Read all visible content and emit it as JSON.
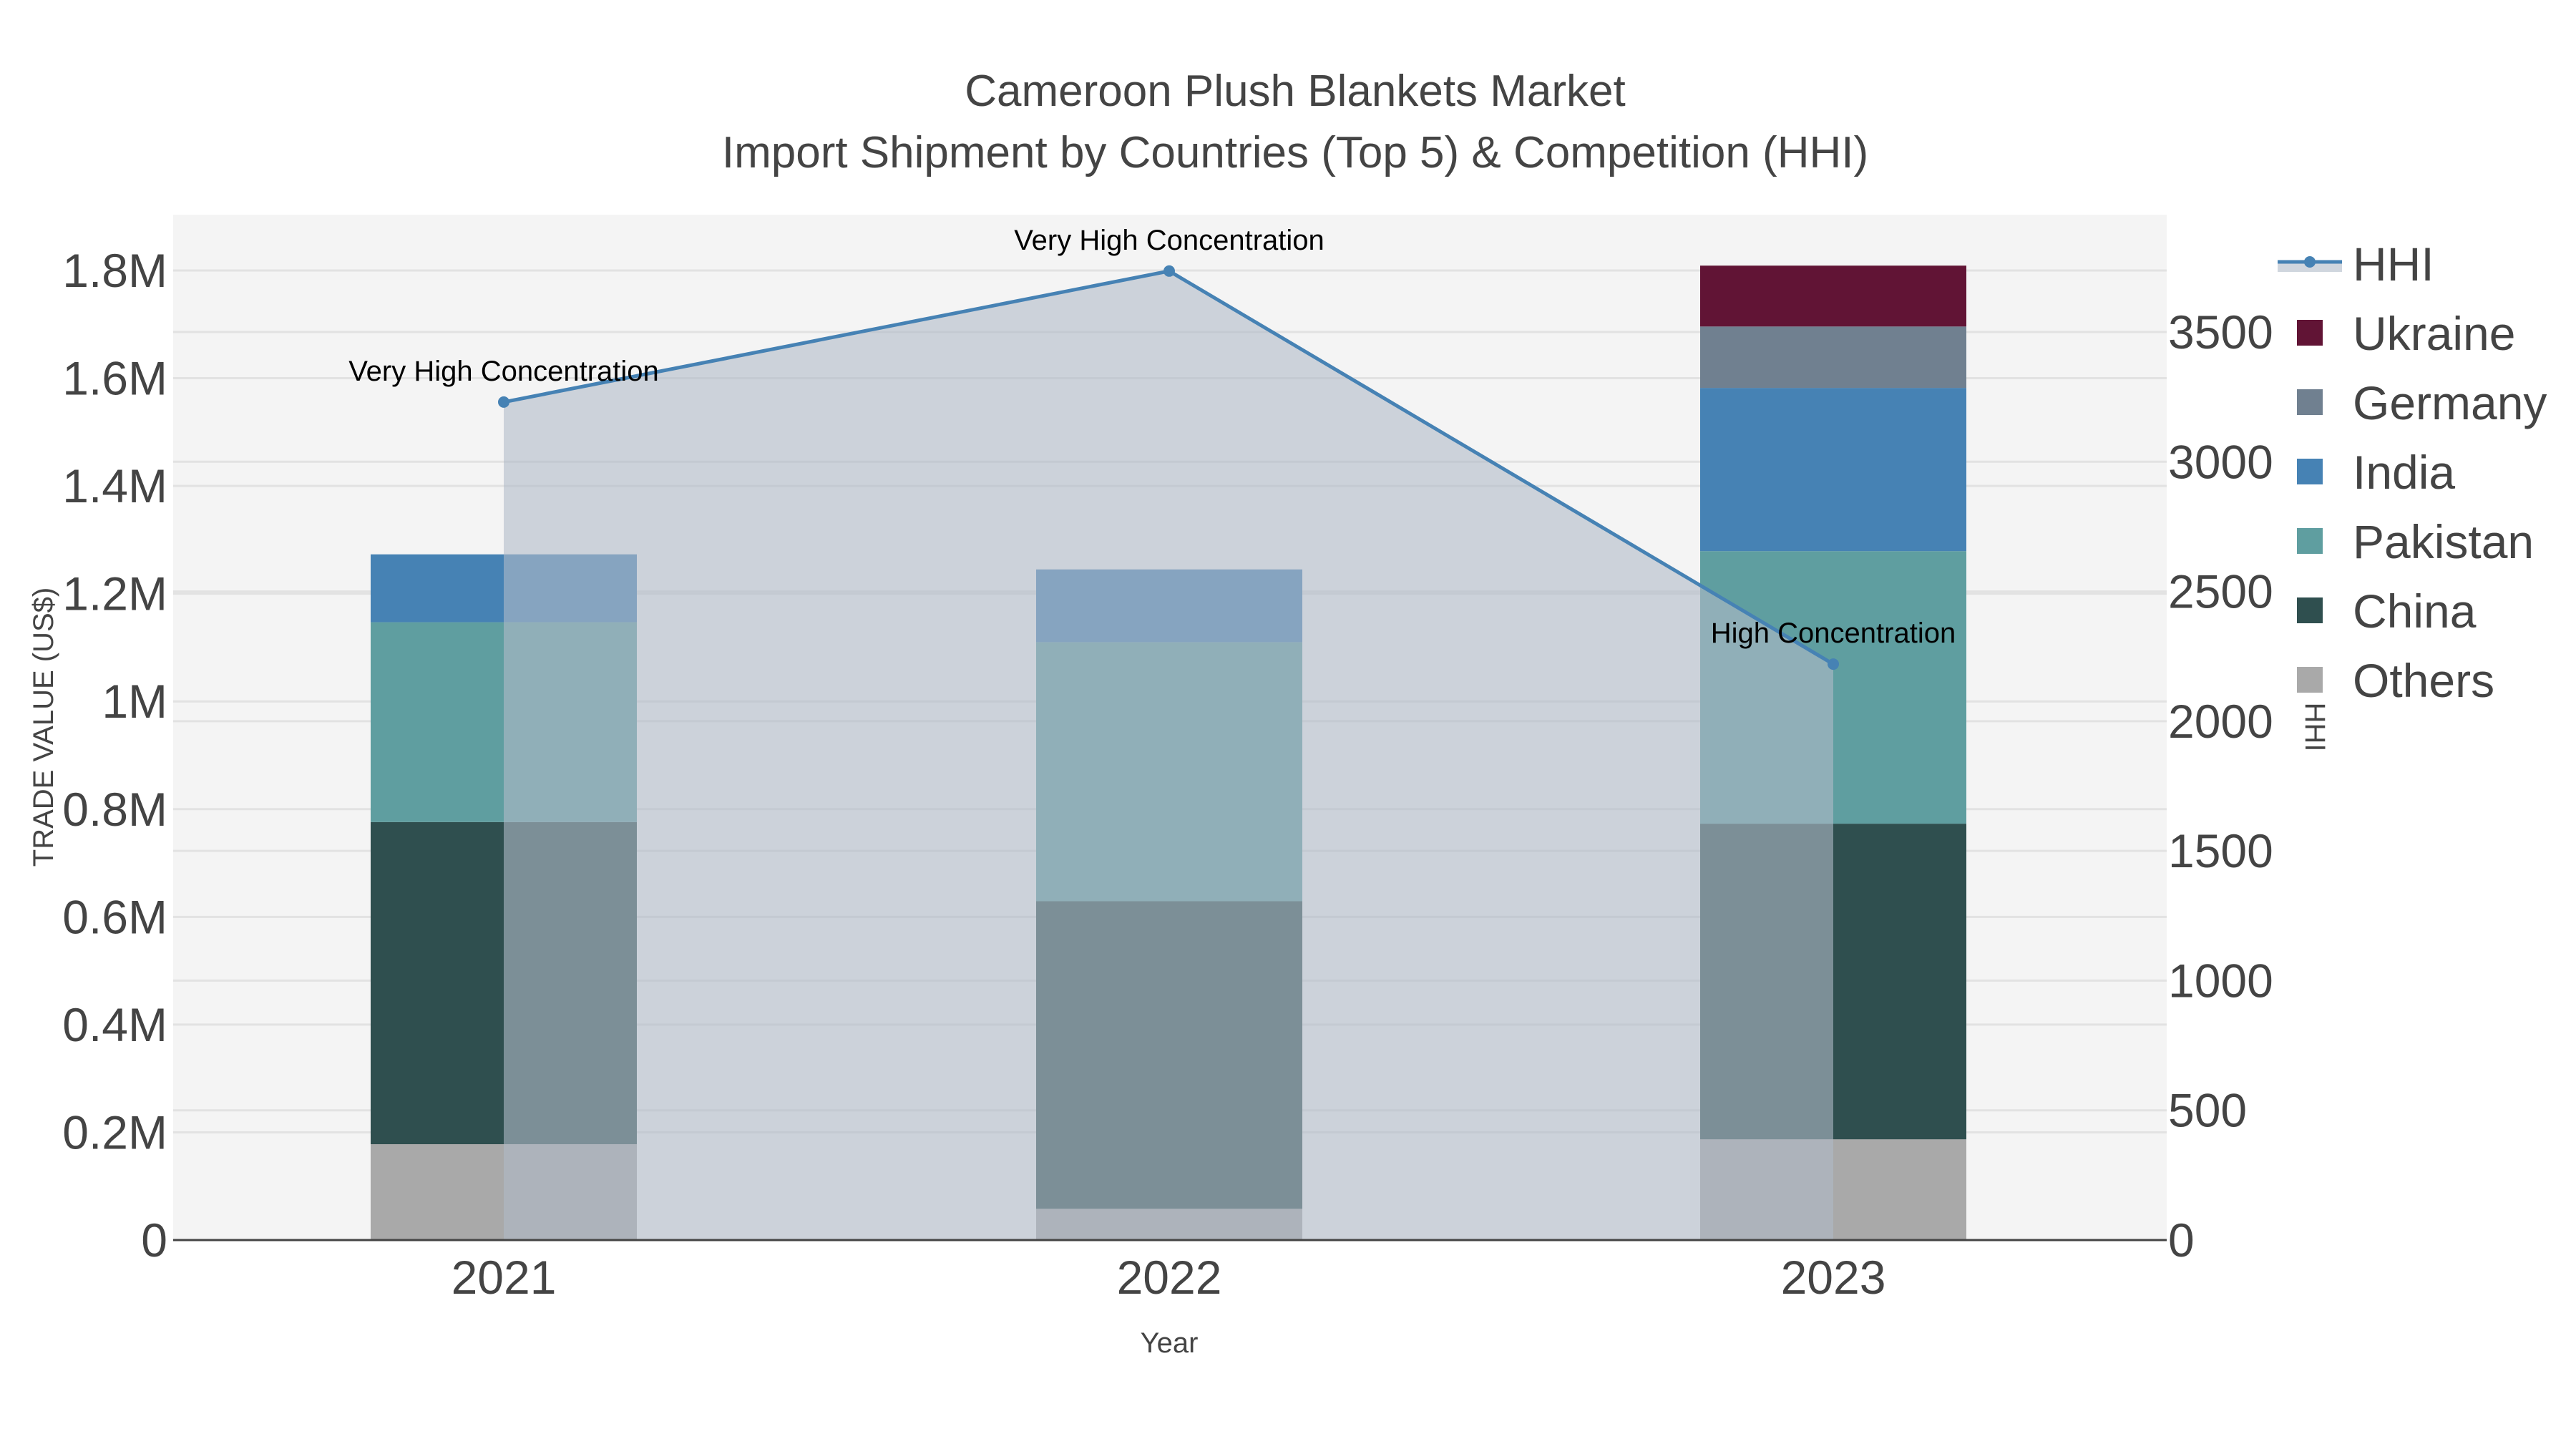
{
  "title": {
    "line1": "Cameroon Plush Blankets Market",
    "line2": "Import Shipment by Countries (Top 5) & Competition (HHI)"
  },
  "axes": {
    "x_title": "Year",
    "y_left_title": "TRADE VALUE (US$)",
    "y_right_title": "HHI",
    "x_ticks": [
      "2021",
      "2022",
      "2023"
    ],
    "y_left_ticks": [
      "0",
      "0.2M",
      "0.4M",
      "0.6M",
      "0.8M",
      "1M",
      "1.2M",
      "1.4M",
      "1.6M",
      "1.8M"
    ],
    "y_right_ticks": [
      "0",
      "500",
      "1000",
      "1500",
      "2000",
      "2500",
      "3000",
      "3500"
    ]
  },
  "annotations": [
    {
      "year": "2021",
      "text": "Very High Concentration"
    },
    {
      "year": "2022",
      "text": "Very High Concentration"
    },
    {
      "year": "2023",
      "text": "High Concentration"
    }
  ],
  "legend": [
    {
      "name": "HHI",
      "type": "line",
      "color": "#4682b4"
    },
    {
      "name": "Ukraine",
      "type": "box",
      "color": "#611435"
    },
    {
      "name": "Germany",
      "type": "box",
      "color": "#708090"
    },
    {
      "name": "India",
      "type": "box",
      "color": "#4682b4"
    },
    {
      "name": "Pakistan",
      "type": "box",
      "color": "#5f9ea0"
    },
    {
      "name": "China",
      "type": "box",
      "color": "#2f4f4f"
    },
    {
      "name": "Others",
      "type": "box",
      "color": "#a9a9a9"
    }
  ],
  "colors": {
    "plot_bg": "#f4f4f4",
    "grid": "#e2e2e2",
    "hhi_line": "#4682b4",
    "hhi_fill": "rgba(176,186,200,0.6)",
    "text": "#444444"
  },
  "chart_data": {
    "type": "bar",
    "stacked": true,
    "title": "Cameroon Plush Blankets Market\nImport Shipment by Countries (Top 5) & Competition (HHI)",
    "xlabel": "Year",
    "ylabel": "TRADE VALUE (US$)",
    "y2label": "HHI",
    "categories": [
      "2021",
      "2022",
      "2023"
    ],
    "ylim": [
      0,
      1900000
    ],
    "y2lim": [
      0,
      3870
    ],
    "grid": true,
    "legend_position": "right",
    "series": [
      {
        "name": "Others",
        "color": "#a9a9a9",
        "values": [
          178000,
          58000,
          187000
        ]
      },
      {
        "name": "China",
        "color": "#2f4f4f",
        "values": [
          598000,
          571000,
          586000
        ]
      },
      {
        "name": "Pakistan",
        "color": "#5f9ea0",
        "values": [
          371000,
          481000,
          506000
        ]
      },
      {
        "name": "India",
        "color": "#4682b4",
        "values": [
          126000,
          135000,
          303000
        ]
      },
      {
        "name": "Germany",
        "color": "#708090",
        "values": [
          0,
          0,
          114000
        ]
      },
      {
        "name": "Ukraine",
        "color": "#611435",
        "values": [
          0,
          0,
          113000
        ]
      }
    ],
    "totals": [
      1273000,
      1245000,
      1809000
    ],
    "line_series": {
      "name": "HHI",
      "axis": "right",
      "type": "line+area",
      "color": "#4682b4",
      "values": [
        3230,
        3735,
        2220
      ],
      "labels": [
        "Very High Concentration",
        "Very High Concentration",
        "High Concentration"
      ]
    }
  }
}
